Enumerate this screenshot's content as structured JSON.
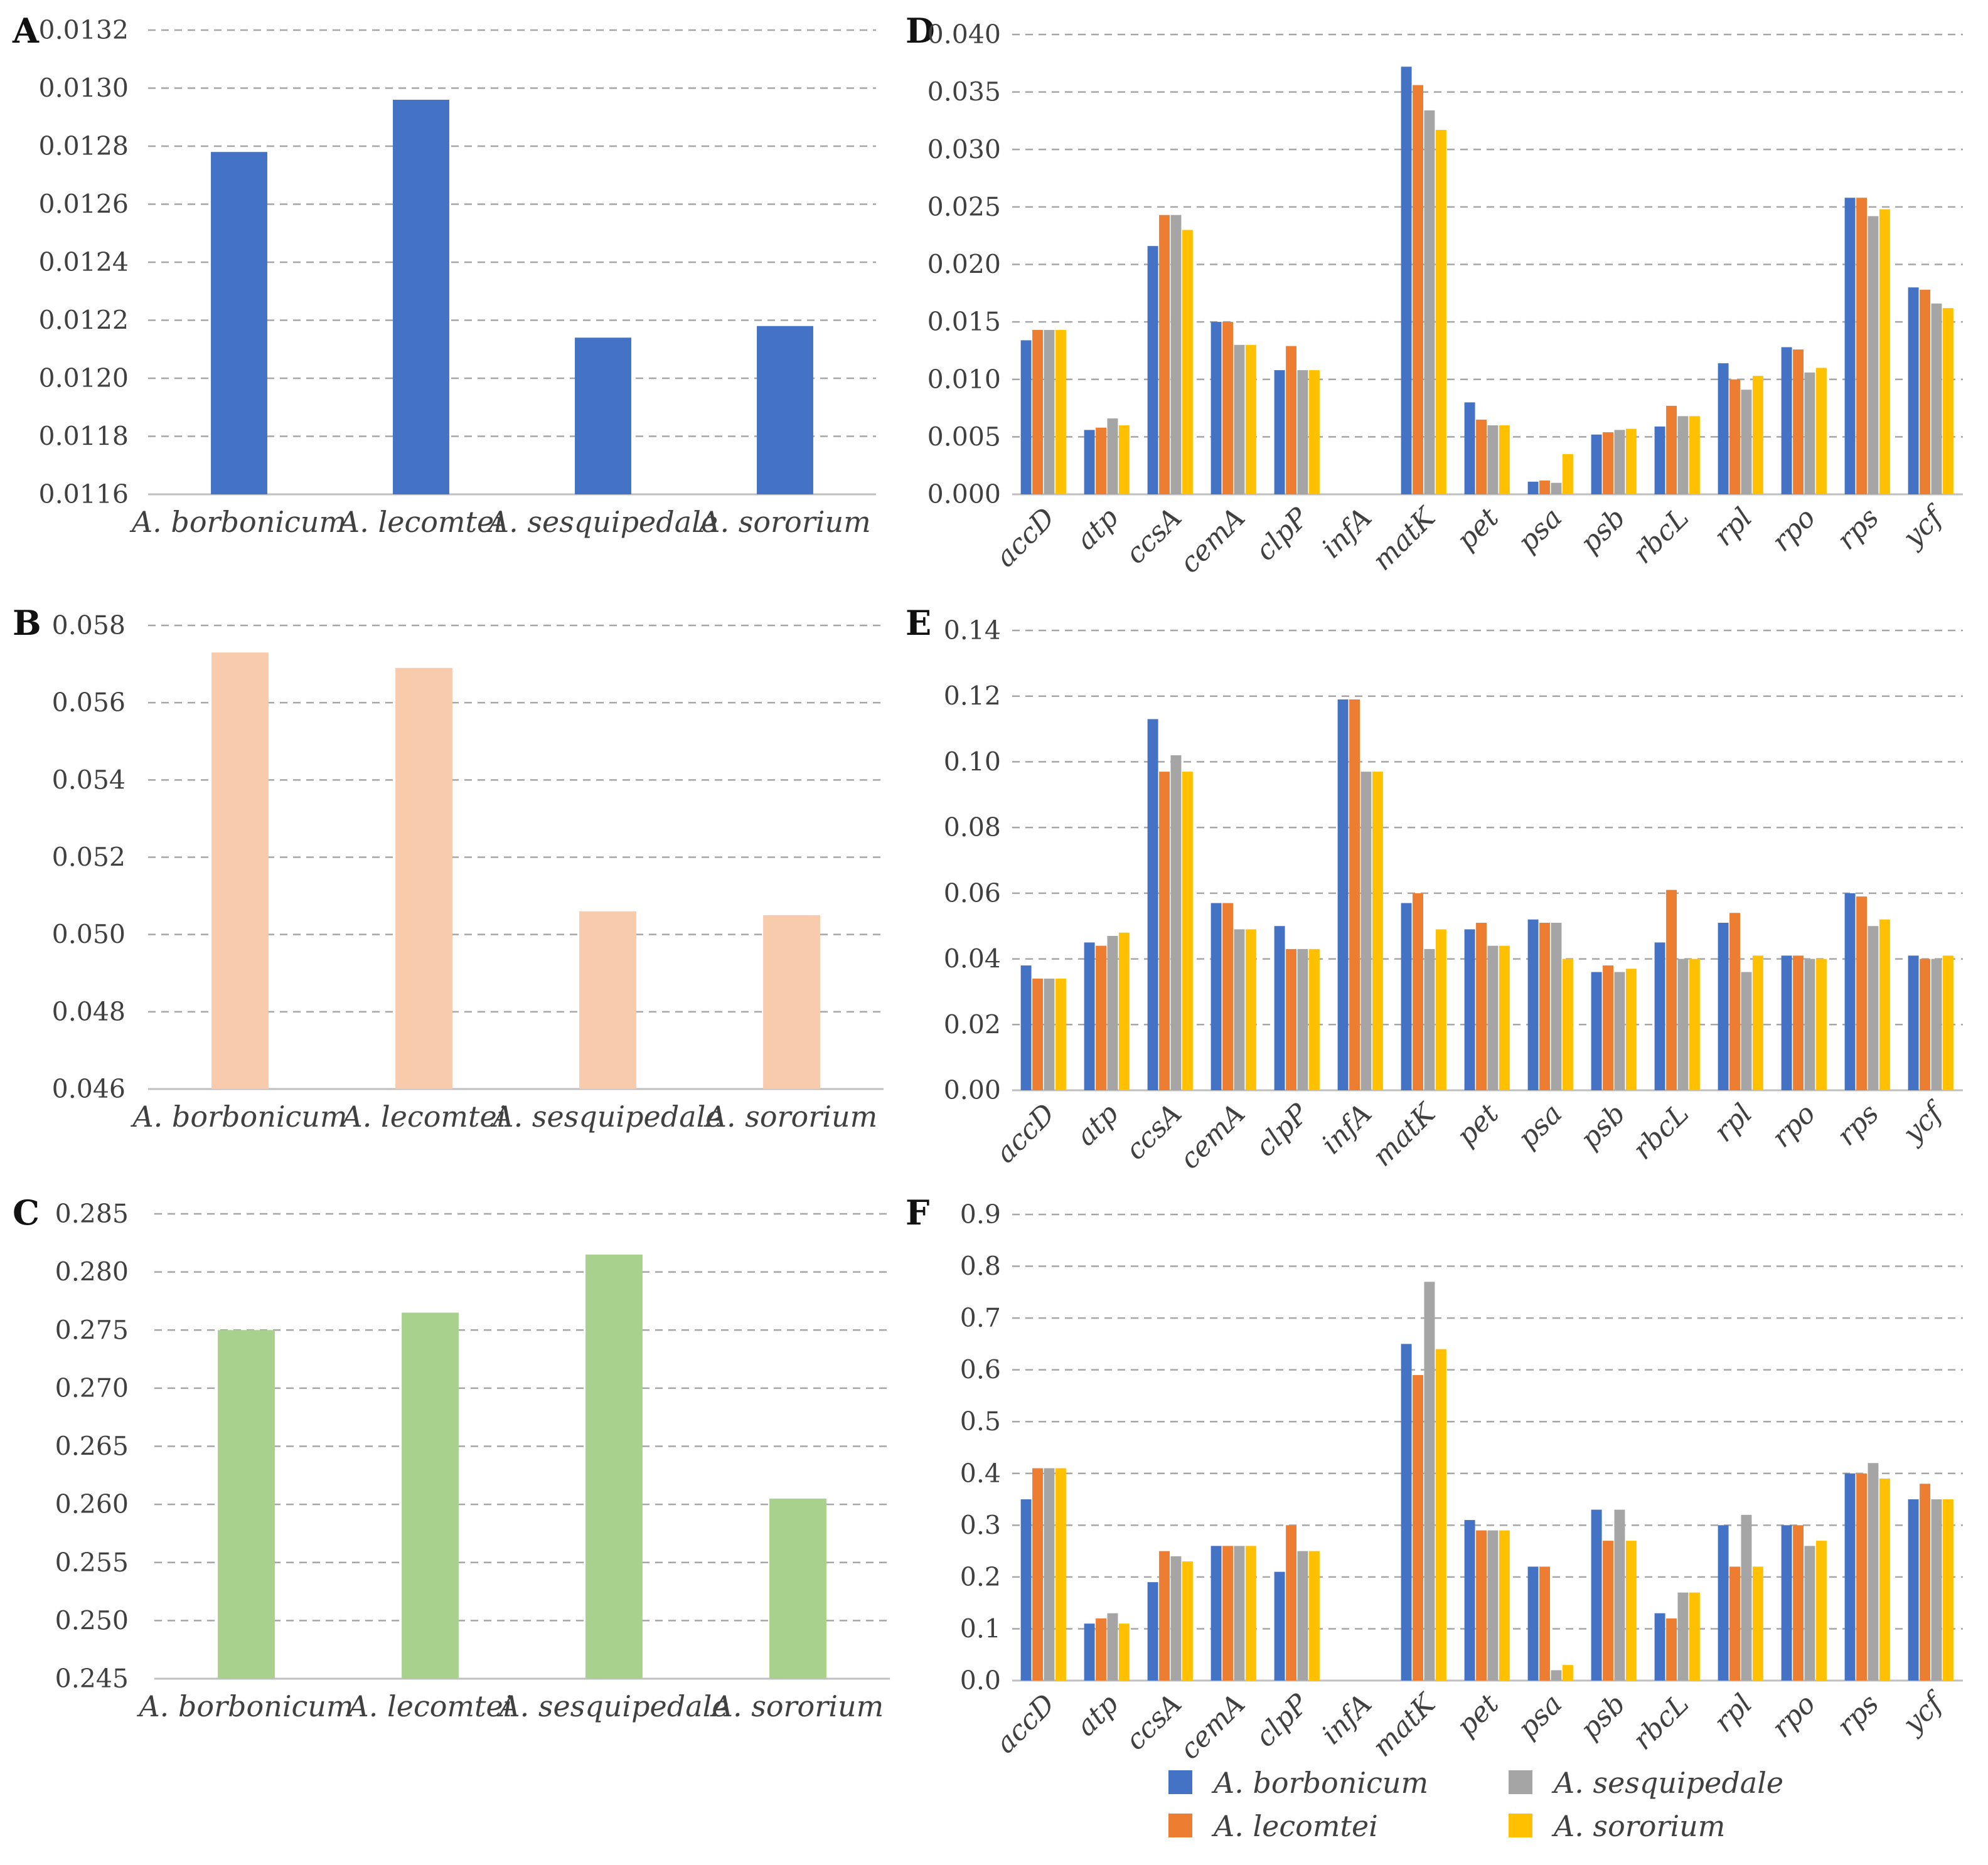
{
  "species": [
    "A. borbonicum",
    "A. lecomtei",
    "A. sesquipedale",
    "A. sororium"
  ],
  "genes": [
    "accD",
    "atp",
    "ccsA",
    "cemA",
    "clpP",
    "infA",
    "matK",
    "pet",
    "psa",
    "psb",
    "rbcL",
    "rpl",
    "rpo",
    "rps",
    "ycf"
  ],
  "colors": {
    "A. borbonicum": "#4472c4",
    "A. lecomtei": "#ed7d31",
    "A. sesquipedale": "#a5a5a5",
    "A. sororium": "#ffc000",
    "panelA": "#4472c4",
    "panelB": "#f8cbad",
    "panelC": "#a9d18e"
  },
  "legend": {
    "items": [
      "A. borbonicum",
      "A. lecomtei",
      "A. sesquipedale",
      "A. sororium"
    ]
  },
  "chart_data": [
    {
      "panel": "A",
      "type": "bar",
      "categories": [
        "A. borbonicum",
        "A. lecomtei",
        "A. sesquipedale",
        "A. sororium"
      ],
      "values": [
        0.01278,
        0.01296,
        0.01214,
        0.01218
      ],
      "ylim": [
        0.0116,
        0.0132
      ],
      "yticks": [
        "0.0116",
        "0.0118",
        "0.0120",
        "0.0122",
        "0.0124",
        "0.0126",
        "0.0128",
        "0.0130",
        "0.0132"
      ],
      "color": "#4472c4"
    },
    {
      "panel": "B",
      "type": "bar",
      "categories": [
        "A. borbonicum",
        "A. lecomtei",
        "A. sesquipedale",
        "A. sororium"
      ],
      "values": [
        0.0573,
        0.0569,
        0.0506,
        0.0505
      ],
      "ylim": [
        0.046,
        0.058
      ],
      "yticks": [
        "0.046",
        "0.048",
        "0.050",
        "0.052",
        "0.054",
        "0.056",
        "0.058"
      ],
      "color": "#f8cbad"
    },
    {
      "panel": "C",
      "type": "bar",
      "categories": [
        "A. borbonicum",
        "A. lecomtei",
        "A. sesquipedale",
        "A. sororium"
      ],
      "values": [
        0.275,
        0.2765,
        0.2815,
        0.2605
      ],
      "ylim": [
        0.245,
        0.285
      ],
      "yticks": [
        "0.245",
        "0.250",
        "0.255",
        "0.260",
        "0.265",
        "0.270",
        "0.275",
        "0.280",
        "0.285"
      ],
      "color": "#a9d18e"
    },
    {
      "panel": "D",
      "type": "bar",
      "categories": [
        "accD",
        "atp",
        "ccsA",
        "cemA",
        "clpP",
        "infA",
        "matK",
        "pet",
        "psa",
        "psb",
        "rbcL",
        "rpl",
        "rpo",
        "rps",
        "ycf"
      ],
      "series": [
        {
          "name": "A. borbonicum",
          "values": [
            0.0134,
            0.0056,
            0.0216,
            0.015,
            0.0108,
            0.0,
            0.0372,
            0.008,
            0.0011,
            0.0052,
            0.0059,
            0.0114,
            0.0128,
            0.0258,
            0.018
          ]
        },
        {
          "name": "A. lecomtei",
          "values": [
            0.0143,
            0.0058,
            0.0243,
            0.015,
            0.0129,
            0.0,
            0.0356,
            0.0065,
            0.0012,
            0.0054,
            0.0077,
            0.01,
            0.0126,
            0.0258,
            0.0178
          ]
        },
        {
          "name": "A. sesquipedale",
          "values": [
            0.0143,
            0.0066,
            0.0243,
            0.013,
            0.0108,
            0.0,
            0.0334,
            0.006,
            0.001,
            0.0056,
            0.0068,
            0.0091,
            0.0106,
            0.0242,
            0.0166
          ]
        },
        {
          "name": "A. sororium",
          "values": [
            0.0143,
            0.006,
            0.023,
            0.013,
            0.0108,
            0.0,
            0.0317,
            0.006,
            0.0035,
            0.0057,
            0.0068,
            0.0103,
            0.011,
            0.0248,
            0.0162
          ]
        }
      ],
      "ylim": [
        0.0,
        0.04
      ],
      "yticks": [
        "0.000",
        "0.005",
        "0.010",
        "0.015",
        "0.020",
        "0.025",
        "0.030",
        "0.035",
        "0.040"
      ]
    },
    {
      "panel": "E",
      "type": "bar",
      "categories": [
        "accD",
        "atp",
        "ccsA",
        "cemA",
        "clpP",
        "infA",
        "matK",
        "pet",
        "psa",
        "psb",
        "rbcL",
        "rpl",
        "rpo",
        "rps",
        "ycf"
      ],
      "series": [
        {
          "name": "A. borbonicum",
          "values": [
            0.038,
            0.045,
            0.113,
            0.057,
            0.05,
            0.119,
            0.057,
            0.049,
            0.052,
            0.036,
            0.045,
            0.051,
            0.041,
            0.06,
            0.041
          ]
        },
        {
          "name": "A. lecomtei",
          "values": [
            0.034,
            0.044,
            0.097,
            0.057,
            0.043,
            0.119,
            0.06,
            0.051,
            0.051,
            0.038,
            0.061,
            0.054,
            0.041,
            0.059,
            0.04
          ]
        },
        {
          "name": "A. sesquipedale",
          "values": [
            0.034,
            0.047,
            0.102,
            0.049,
            0.043,
            0.097,
            0.043,
            0.044,
            0.051,
            0.036,
            0.04,
            0.036,
            0.04,
            0.05,
            0.04
          ]
        },
        {
          "name": "A. sororium",
          "values": [
            0.034,
            0.048,
            0.097,
            0.049,
            0.043,
            0.097,
            0.049,
            0.044,
            0.04,
            0.037,
            0.04,
            0.041,
            0.04,
            0.052,
            0.041
          ]
        }
      ],
      "ylim": [
        0.0,
        0.14
      ],
      "yticks": [
        "0.00",
        "0.02",
        "0.04",
        "0.06",
        "0.08",
        "0.10",
        "0.12",
        "0.14"
      ]
    },
    {
      "panel": "F",
      "type": "bar",
      "categories": [
        "accD",
        "atp",
        "ccsA",
        "cemA",
        "clpP",
        "infA",
        "matK",
        "pet",
        "psa",
        "psb",
        "rbcL",
        "rpl",
        "rpo",
        "rps",
        "ycf"
      ],
      "series": [
        {
          "name": "A. borbonicum",
          "values": [
            0.35,
            0.11,
            0.19,
            0.26,
            0.21,
            0.0,
            0.65,
            0.31,
            0.22,
            0.33,
            0.13,
            0.3,
            0.3,
            0.4,
            0.35
          ]
        },
        {
          "name": "A. lecomtei",
          "values": [
            0.41,
            0.12,
            0.25,
            0.26,
            0.3,
            0.0,
            0.59,
            0.29,
            0.22,
            0.27,
            0.12,
            0.22,
            0.3,
            0.4,
            0.38
          ]
        },
        {
          "name": "A. sesquipedale",
          "values": [
            0.41,
            0.13,
            0.24,
            0.26,
            0.25,
            0.0,
            0.77,
            0.29,
            0.02,
            0.33,
            0.17,
            0.32,
            0.26,
            0.42,
            0.35
          ]
        },
        {
          "name": "A. sororium",
          "values": [
            0.41,
            0.11,
            0.23,
            0.26,
            0.25,
            0.0,
            0.64,
            0.29,
            0.03,
            0.27,
            0.17,
            0.22,
            0.27,
            0.39,
            0.35
          ]
        }
      ],
      "ylim": [
        0.0,
        0.9
      ],
      "yticks": [
        "0.0",
        "0.1",
        "0.2",
        "0.3",
        "0.4",
        "0.5",
        "0.6",
        "0.7",
        "0.8",
        "0.9"
      ]
    }
  ]
}
